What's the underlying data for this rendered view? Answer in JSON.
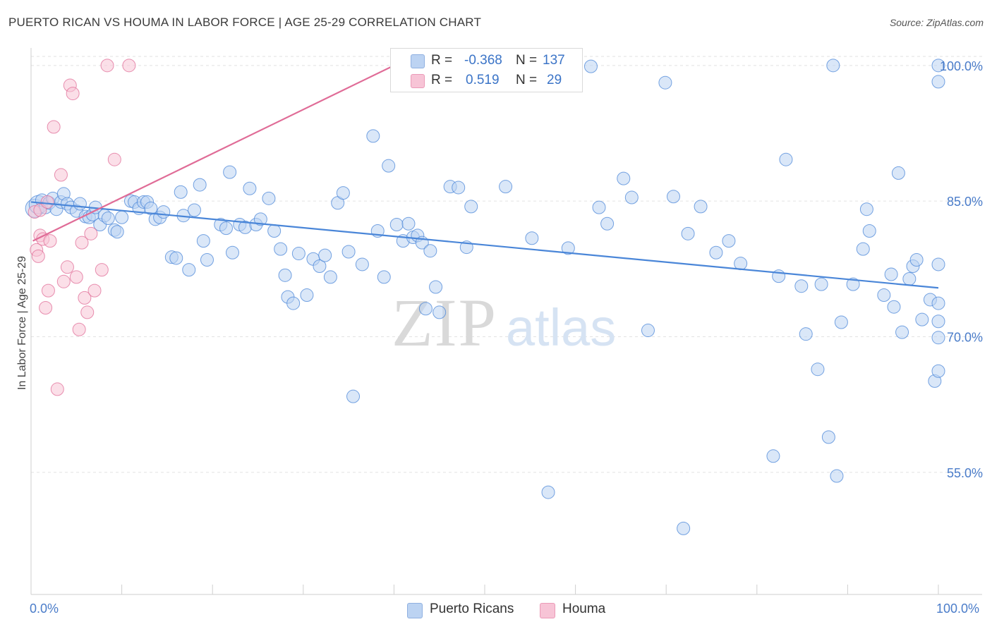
{
  "title": "PUERTO RICAN VS HOUMA IN LABOR FORCE | AGE 25-29 CORRELATION CHART",
  "source": "Source: ZipAtlas.com",
  "watermark": {
    "zip": "ZIP",
    "atlas": "atlas"
  },
  "legend": {
    "rows": [
      {
        "r_label": "R =",
        "r_value": "-0.368",
        "n_label": "N =",
        "n_value": "137",
        "color": "#bcd3f2"
      },
      {
        "r_label": "R =",
        "r_value": "0.519",
        "n_label": "N =",
        "n_value": "29",
        "color": "#f7c4d6"
      }
    ]
  },
  "bottom_legend": [
    {
      "label": "Puerto Ricans",
      "color": "#bcd3f2"
    },
    {
      "label": "Houma",
      "color": "#f7c4d6"
    }
  ],
  "chart_data": {
    "type": "scatter",
    "title": "PUERTO RICAN VS HOUMA IN LABOR FORCE | AGE 25-29 CORRELATION CHART",
    "xlabel": "",
    "ylabel": "In Labor Force | Age 25-29",
    "xlim": [
      0,
      100
    ],
    "ylim": [
      41.5,
      101
    ],
    "x_tick_labels": [
      "0.0%",
      "100.0%"
    ],
    "y_ticks": [
      55,
      70,
      85,
      100
    ],
    "y_tick_labels": [
      "55.0%",
      "70.0%",
      "85.0%",
      "100.0%"
    ],
    "grid": true,
    "legend_placement": "top-center",
    "series": [
      {
        "name": "Puerto Ricans",
        "color": "#4a86d8",
        "fill": "#bcd3f2",
        "trend": {
          "x": [
            0,
            100
          ],
          "y": [
            84.9,
            75.4
          ]
        },
        "points": [
          [
            0.4,
            84.2
          ],
          [
            0.8,
            84.6
          ],
          [
            1.2,
            85.1
          ],
          [
            1.6,
            84.3
          ],
          [
            2.0,
            84.8
          ],
          [
            2.4,
            85.3
          ],
          [
            2.8,
            84.1
          ],
          [
            3.3,
            84.9
          ],
          [
            3.6,
            85.8
          ],
          [
            4.0,
            84.7
          ],
          [
            4.4,
            84.3
          ],
          [
            5.0,
            83.9
          ],
          [
            5.4,
            84.7
          ],
          [
            6.0,
            83.3
          ],
          [
            6.4,
            83.2
          ],
          [
            6.8,
            83.5
          ],
          [
            7.1,
            84.3
          ],
          [
            7.6,
            82.4
          ],
          [
            8.1,
            83.4
          ],
          [
            8.5,
            83.1
          ],
          [
            9.2,
            81.8
          ],
          [
            9.5,
            81.6
          ],
          [
            10.0,
            83.2
          ],
          [
            11.0,
            85.0
          ],
          [
            11.4,
            84.9
          ],
          [
            11.9,
            84.2
          ],
          [
            12.4,
            84.9
          ],
          [
            12.8,
            84.9
          ],
          [
            13.2,
            84.2
          ],
          [
            13.7,
            83.0
          ],
          [
            14.2,
            83.2
          ],
          [
            14.6,
            83.8
          ],
          [
            15.5,
            78.8
          ],
          [
            16.0,
            78.7
          ],
          [
            16.5,
            86.0
          ],
          [
            16.8,
            83.4
          ],
          [
            17.4,
            77.4
          ],
          [
            18.0,
            84.0
          ],
          [
            18.6,
            86.8
          ],
          [
            19.0,
            80.6
          ],
          [
            19.4,
            78.5
          ],
          [
            20.9,
            82.4
          ],
          [
            21.5,
            82.0
          ],
          [
            21.9,
            88.2
          ],
          [
            22.2,
            79.3
          ],
          [
            23.0,
            82.4
          ],
          [
            23.6,
            82.1
          ],
          [
            24.1,
            86.4
          ],
          [
            24.8,
            82.4
          ],
          [
            25.3,
            83.0
          ],
          [
            26.2,
            85.3
          ],
          [
            26.8,
            81.7
          ],
          [
            27.5,
            79.7
          ],
          [
            28.0,
            76.8
          ],
          [
            28.3,
            74.4
          ],
          [
            28.9,
            73.7
          ],
          [
            29.5,
            79.2
          ],
          [
            30.4,
            74.6
          ],
          [
            31.1,
            78.6
          ],
          [
            31.8,
            77.8
          ],
          [
            32.4,
            79.0
          ],
          [
            33.0,
            76.6
          ],
          [
            33.8,
            84.8
          ],
          [
            34.4,
            85.9
          ],
          [
            35.0,
            79.4
          ],
          [
            35.5,
            63.4
          ],
          [
            36.5,
            78.0
          ],
          [
            37.7,
            92.2
          ],
          [
            38.2,
            81.7
          ],
          [
            38.9,
            76.6
          ],
          [
            39.4,
            88.9
          ],
          [
            40.3,
            82.4
          ],
          [
            41.0,
            80.6
          ],
          [
            41.6,
            82.5
          ],
          [
            42.1,
            81.0
          ],
          [
            42.6,
            81.2
          ],
          [
            43.1,
            80.4
          ],
          [
            43.5,
            73.1
          ],
          [
            44.0,
            79.5
          ],
          [
            44.6,
            75.5
          ],
          [
            45.0,
            72.7
          ],
          [
            46.2,
            86.6
          ],
          [
            47.1,
            86.5
          ],
          [
            48.0,
            79.9
          ],
          [
            48.5,
            84.4
          ],
          [
            49.5,
            100
          ],
          [
            52.3,
            86.6
          ],
          [
            55.2,
            80.9
          ],
          [
            57.0,
            52.8
          ],
          [
            59.2,
            79.8
          ],
          [
            61.7,
            99.9
          ],
          [
            62.6,
            84.3
          ],
          [
            63.5,
            82.5
          ],
          [
            65.3,
            87.5
          ],
          [
            66.2,
            85.4
          ],
          [
            68.0,
            70.7
          ],
          [
            69.9,
            98.1
          ],
          [
            70.8,
            85.5
          ],
          [
            71.9,
            48.8
          ],
          [
            72.4,
            81.4
          ],
          [
            73.8,
            84.4
          ],
          [
            75.5,
            79.3
          ],
          [
            76.9,
            80.6
          ],
          [
            78.2,
            78.1
          ],
          [
            81.8,
            56.8
          ],
          [
            82.4,
            76.7
          ],
          [
            83.2,
            89.6
          ],
          [
            84.9,
            75.6
          ],
          [
            85.4,
            70.3
          ],
          [
            86.7,
            66.4
          ],
          [
            87.1,
            75.8
          ],
          [
            87.9,
            58.9
          ],
          [
            88.4,
            100
          ],
          [
            88.8,
            54.6
          ],
          [
            89.3,
            71.6
          ],
          [
            90.6,
            75.8
          ],
          [
            91.7,
            79.7
          ],
          [
            92.1,
            84.1
          ],
          [
            92.4,
            81.7
          ],
          [
            94.0,
            74.6
          ],
          [
            94.8,
            76.9
          ],
          [
            95.1,
            73.3
          ],
          [
            95.6,
            88.1
          ],
          [
            96.0,
            70.5
          ],
          [
            96.8,
            76.4
          ],
          [
            97.2,
            77.8
          ],
          [
            97.6,
            78.5
          ],
          [
            98.2,
            71.9
          ],
          [
            99.1,
            74.1
          ],
          [
            99.6,
            65.1
          ],
          [
            100,
            66.2
          ],
          [
            100,
            69.9
          ],
          [
            100,
            73.7
          ],
          [
            100,
            71.7
          ],
          [
            100,
            78.0
          ],
          [
            100,
            98.2
          ],
          [
            100,
            100
          ]
        ]
      },
      {
        "name": "Houma",
        "color": "#e06c97",
        "fill": "#f7c4d6",
        "trend": {
          "x": [
            0.2,
            40
          ],
          "y": [
            80.6,
            100
          ]
        },
        "points": [
          [
            0.4,
            83.8
          ],
          [
            0.6,
            79.6
          ],
          [
            0.8,
            78.9
          ],
          [
            1.0,
            81.2
          ],
          [
            1.3,
            80.8
          ],
          [
            1.6,
            73.2
          ],
          [
            1.9,
            75.1
          ],
          [
            2.1,
            80.6
          ],
          [
            2.5,
            93.2
          ],
          [
            2.9,
            64.2
          ],
          [
            3.3,
            87.9
          ],
          [
            3.6,
            76.1
          ],
          [
            4.0,
            77.7
          ],
          [
            4.3,
            97.8
          ],
          [
            4.6,
            96.9
          ],
          [
            5.0,
            76.6
          ],
          [
            5.3,
            70.8
          ],
          [
            5.6,
            80.4
          ],
          [
            5.9,
            74.3
          ],
          [
            6.2,
            72.7
          ],
          [
            6.6,
            81.4
          ],
          [
            7.0,
            75.1
          ],
          [
            7.8,
            77.4
          ],
          [
            8.4,
            100
          ],
          [
            9.2,
            89.6
          ],
          [
            10.8,
            100
          ],
          [
            40.5,
            100
          ],
          [
            1.0,
            84.0
          ],
          [
            1.8,
            84.9
          ]
        ]
      }
    ]
  }
}
